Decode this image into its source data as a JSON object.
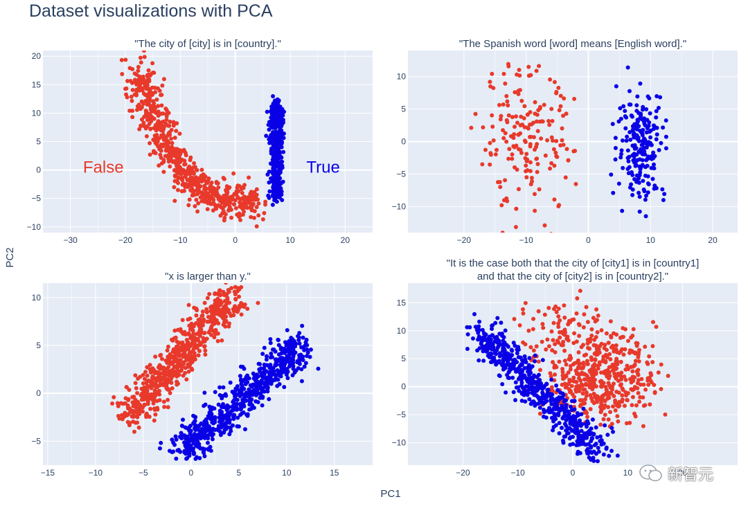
{
  "page_title": "Dataset visualizations with PCA",
  "shared_axes": {
    "x_label": "PC1",
    "y_label": "PC2"
  },
  "watermark": "新智元",
  "colors": {
    "false_color": "#e8392b",
    "true_color": "#0a00e6",
    "plot_bg": "#e5ecf6",
    "grid": "#ffffff",
    "text": "#2a3f5f"
  },
  "chart_data": [
    {
      "type": "scatter",
      "title": "\"The city of [city] is in [country].\"",
      "xlim": [
        -35,
        25
      ],
      "ylim": [
        -11,
        21
      ],
      "xticks": [
        -30,
        -20,
        -10,
        0,
        10,
        20
      ],
      "yticks": [
        -10,
        -5,
        0,
        5,
        10,
        15,
        20
      ],
      "annotations": [
        {
          "text": "False",
          "x": -24,
          "y": 0.5,
          "series": "False"
        },
        {
          "text": "True",
          "x": 16,
          "y": 0.5,
          "series": "True"
        }
      ],
      "series": [
        {
          "name": "False",
          "clusters": [
            {
              "n": 260,
              "line": [
                [
                  -18,
                  18
                ],
                [
                  -12,
                  3
                ]
              ],
              "spread": 1.5
            },
            {
              "n": 420,
              "line": [
                [
                  -12,
                  3
                ],
                [
                  -6,
                  -4
                ],
                [
                  3,
                  -6
                ]
              ],
              "spread": 1.4
            }
          ]
        },
        {
          "name": "True",
          "clusters": [
            {
              "n": 450,
              "line": [
                [
                  7.5,
                  12
                ],
                [
                  7.5,
                  -5
                ]
              ],
              "spread": 0.6
            }
          ]
        }
      ]
    },
    {
      "type": "scatter",
      "title": "\"The Spanish word [word] means [English word].\"",
      "xlim": [
        -29,
        24
      ],
      "ylim": [
        -14,
        14
      ],
      "xticks": [
        -20,
        -10,
        0,
        10,
        20
      ],
      "yticks": [
        -10,
        -5,
        0,
        5,
        10
      ],
      "annotations": [],
      "series": [
        {
          "name": "False",
          "clusters": [
            {
              "n": 190,
              "center": [
                -10,
                0
              ],
              "sd": [
                3.8,
                5.5
              ]
            }
          ]
        },
        {
          "name": "True",
          "clusters": [
            {
              "n": 210,
              "center": [
                8.5,
                -0.5
              ],
              "sd": [
                1.9,
                4.2
              ]
            }
          ]
        }
      ]
    },
    {
      "type": "scatter",
      "title": "\"x is larger than y.\"",
      "xlim": [
        -15.5,
        19
      ],
      "ylim": [
        -7.5,
        11.5
      ],
      "xticks": [
        -15,
        -10,
        -5,
        0,
        5,
        10,
        15
      ],
      "yticks": [
        -5,
        0,
        5,
        10
      ],
      "annotations": [],
      "series": [
        {
          "name": "False",
          "clusters": [
            {
              "n": 650,
              "line": [
                [
                  -6.5,
                  -2.5
                ],
                [
                  4.5,
                  10.5
                ]
              ],
              "spread": 0.9
            }
          ]
        },
        {
          "name": "True",
          "clusters": [
            {
              "n": 650,
              "line": [
                [
                  -1,
                  -6
                ],
                [
                  11.5,
                  5
                ]
              ],
              "spread": 0.9
            }
          ]
        }
      ]
    },
    {
      "type": "scatter",
      "title": "\"It is the case both that the city of [city1] is in [country1]\nand that the city of [city2] is in [country2].\"",
      "xlim": [
        -30,
        30
      ],
      "ylim": [
        -14,
        18.5
      ],
      "xticks": [
        -20,
        -10,
        0,
        10,
        20
      ],
      "yticks": [
        -10,
        -5,
        0,
        5,
        10,
        15
      ],
      "annotations": [],
      "series": [
        {
          "name": "False",
          "clusters": [
            {
              "n": 480,
              "center": [
                5,
                2
              ],
              "sd": [
                5.0,
                4.0
              ]
            },
            {
              "n": 70,
              "center": [
                -2,
                10.5
              ],
              "sd": [
                4.0,
                2.8
              ]
            }
          ]
        },
        {
          "name": "True",
          "clusters": [
            {
              "n": 560,
              "line": [
                [
                  -17,
                  10
                ],
                [
                  5,
                  -12
                ]
              ],
              "spread": 1.5
            }
          ]
        }
      ]
    }
  ]
}
